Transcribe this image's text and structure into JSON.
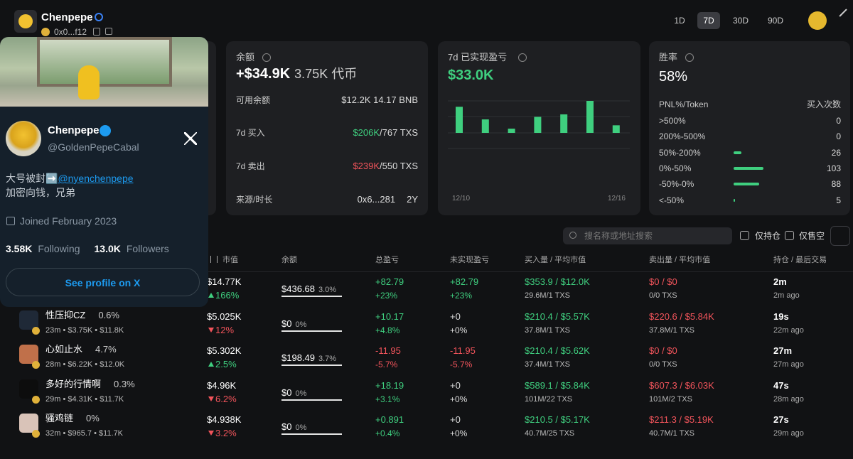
{
  "header": {
    "name": "Chenpepe",
    "address": "0x0...f12",
    "periods": [
      "1D",
      "7D",
      "30D",
      "90D"
    ],
    "active_period": "7D"
  },
  "balance": {
    "label": "余额",
    "total": "+$34.9K",
    "tokens": "3.75K 代币",
    "rows": [
      {
        "label": "可用余额",
        "value": "$12.2K 14.17 BNB"
      },
      {
        "label": "7d 买入",
        "value": "$206K",
        "suffix": "/767 TXS",
        "tone": "#3fcf7f"
      },
      {
        "label": "7d 卖出",
        "value": "$239K",
        "suffix": "/550 TXS",
        "tone": "#f2545b"
      },
      {
        "label": "来源/时长",
        "value": "0x6...281",
        "suffix": "2Y"
      }
    ]
  },
  "pnl": {
    "label": "7d 已实现盈亏",
    "total": "$33.0K",
    "bar_values": [
      31,
      16,
      5,
      19,
      22,
      38,
      9
    ],
    "bar_color": "#3fcf7f",
    "x_labels": [
      "12/10",
      "12/16"
    ]
  },
  "winrate": {
    "label": "胜率",
    "value": "58%",
    "col1": "PNL%/Token",
    "col2": "买入次数",
    "bar_color": "#3fcf7f",
    "rows": [
      {
        "range": ">500%",
        "count": 0
      },
      {
        "range": "200%-500%",
        "count": 0
      },
      {
        "range": "50%-200%",
        "count": 26
      },
      {
        "range": "0%-50%",
        "count": 103
      },
      {
        "range": "-50%-0%",
        "count": 88
      },
      {
        "range": "<-50%",
        "count": 5
      }
    ]
  },
  "profile": {
    "name": "Chenpepe",
    "handle": "@GoldenPepeCabal",
    "bio_prefix": "大号被封➡️",
    "bio_link": "@nyenchenpepe",
    "bio_line2": "加密向钱，兄弟",
    "joined": "Joined February 2023",
    "following_count": "3.58K",
    "following_label": "Following",
    "followers_count": "13.0K",
    "followers_label": "Followers",
    "button": "See profile on X"
  },
  "toolbar": {
    "search": "搜名称或地址搜索",
    "filters": [
      "仅持仓",
      "仅售空"
    ]
  },
  "table": {
    "columns": [
      "市值",
      "余额",
      "总盈亏",
      "未实现盈亏",
      "买入量 / 平均市值",
      "卖出量 / 平均市值",
      "持仓 / 最后交易"
    ],
    "rows": [
      {
        "market_cap": "$14.77K",
        "change": "166%",
        "change_dir": "up",
        "balance": "$436.68",
        "balance_pct": "3.0%",
        "total_pnl": "+82.79",
        "total_pnl_pct": "+23%",
        "unrealized": "+82.79",
        "unrealized_pct": "+23%",
        "buy": "$353.9 / $12.0K",
        "buy_detail": "29.6M/1 TXS",
        "sell": "$0 / $0",
        "sell_detail": "0/0 TXS",
        "hold": "2m",
        "last_trade": "2m ago"
      },
      {
        "name": "性压抑CZ",
        "pct": "0.6%",
        "meta": "23m • $3.75K • $11.8K",
        "market_cap": "$5.025K",
        "change": "12%",
        "change_dir": "down",
        "balance": "$0",
        "balance_pct": "0%",
        "total_pnl": "+10.17",
        "total_pnl_pct": "+4.8%",
        "unrealized": "+0",
        "unrealized_pct": "+0%",
        "buy": "$210.4 / $5.57K",
        "buy_detail": "37.8M/1 TXS",
        "sell": "$220.6 / $5.84K",
        "sell_detail": "37.8M/1 TXS",
        "hold": "19s",
        "last_trade": "22m ago"
      },
      {
        "name": "心如止水",
        "pct": "4.7%",
        "meta": "28m • $6.22K • $12.0K",
        "market_cap": "$5.302K",
        "change": "2.5%",
        "change_dir": "up",
        "balance": "$198.49",
        "balance_pct": "3.7%",
        "total_pnl": "-11.95",
        "total_pnl_pct": "-5.7%",
        "unrealized": "-11.95",
        "unrealized_pct": "-5.7%",
        "buy": "$210.4 / $5.62K",
        "buy_detail": "37.4M/1 TXS",
        "sell": "$0 / $0",
        "sell_detail": "0/0 TXS",
        "hold": "27m",
        "last_trade": "27m ago"
      },
      {
        "name": "多好的行情啊",
        "pct": "0.3%",
        "meta": "29m • $4.31K • $11.7K",
        "market_cap": "$4.96K",
        "change": "6.2%",
        "change_dir": "down",
        "balance": "$0",
        "balance_pct": "0%",
        "total_pnl": "+18.19",
        "total_pnl_pct": "+3.1%",
        "unrealized": "+0",
        "unrealized_pct": "+0%",
        "buy": "$589.1 / $5.84K",
        "buy_detail": "101M/22 TXS",
        "sell": "$607.3 / $6.03K",
        "sell_detail": "101M/2 TXS",
        "hold": "47s",
        "last_trade": "28m ago"
      },
      {
        "name": "骚鸡链",
        "pct": "0%",
        "meta": "32m • $965.7 • $11.7K",
        "market_cap": "$4.938K",
        "change": "3.2%",
        "change_dir": "down",
        "balance": "$0",
        "balance_pct": "0%",
        "total_pnl": "+0.891",
        "total_pnl_pct": "+0.4%",
        "unrealized": "+0",
        "unrealized_pct": "+0%",
        "buy": "$210.5 / $5.17K",
        "buy_detail": "40.7M/25 TXS",
        "sell": "$211.3 / $5.19K",
        "sell_detail": "40.7M/1 TXS",
        "hold": "27s",
        "last_trade": "29m ago"
      }
    ]
  }
}
